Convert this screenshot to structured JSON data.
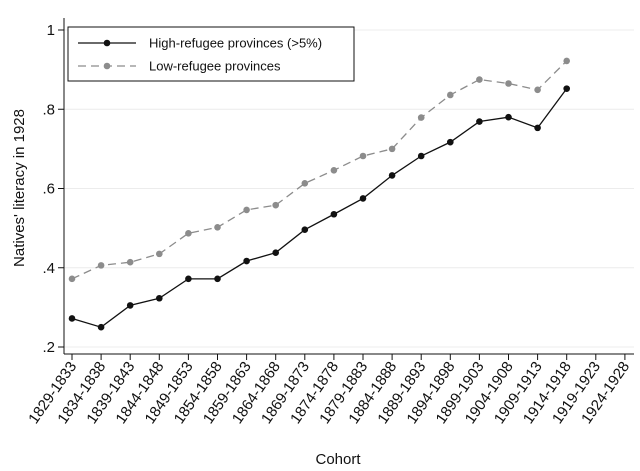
{
  "chart_data": {
    "type": "line",
    "title": "",
    "xlabel": "Cohort",
    "ylabel": "Natives' literacy in 1928",
    "ylim": [
      0.2,
      1.0
    ],
    "yticks": [
      0.2,
      0.4,
      0.6,
      0.8,
      1.0
    ],
    "ytick_labels": [
      ".2",
      ".4",
      ".6",
      ".8",
      "1"
    ],
    "grid": "horizontal",
    "legend_position": "top-left",
    "categories": [
      "1829-1833",
      "1834-1838",
      "1839-1843",
      "1844-1848",
      "1849-1853",
      "1854-1858",
      "1859-1863",
      "1864-1868",
      "1869-1873",
      "1874-1878",
      "1879-1883",
      "1884-1888",
      "1889-1893",
      "1894-1898",
      "1899-1903",
      "1904-1908",
      "1909-1913",
      "1914-1918",
      "1919-1923",
      "1924-1928"
    ],
    "series": [
      {
        "name": "High-refugee provinces (>5%)",
        "color": "#111111",
        "dash": "solid",
        "values": [
          0.272,
          0.25,
          0.305,
          0.323,
          0.372,
          0.372,
          0.417,
          0.438,
          0.496,
          0.535,
          0.575,
          0.633,
          0.682,
          0.717,
          0.769,
          0.78,
          0.753,
          0.852,
          null,
          null
        ]
      },
      {
        "name": "Low-refugee provinces",
        "color": "#8c8c8c",
        "dash": "dashed",
        "values": [
          0.372,
          0.406,
          0.414,
          0.435,
          0.487,
          0.502,
          0.546,
          0.558,
          0.613,
          0.646,
          0.682,
          0.7,
          0.779,
          0.836,
          0.875,
          0.865,
          0.849,
          0.922,
          null,
          null
        ]
      }
    ]
  }
}
